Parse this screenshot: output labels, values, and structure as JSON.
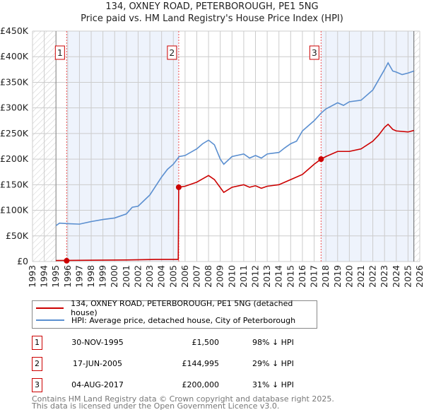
{
  "chart_data": {
    "type": "line",
    "title": "134, OXNEY ROAD, PETERBOROUGH, PE1 5NG",
    "subtitle": "Price paid vs. HM Land Registry's House Price Index (HPI)",
    "xlim": [
      1993,
      2026
    ],
    "ylim": [
      0,
      450000
    ],
    "x_ticks": [
      "1993",
      "1994",
      "1995",
      "1996",
      "1997",
      "1998",
      "1999",
      "2000",
      "2001",
      "2002",
      "2003",
      "2004",
      "2005",
      "2006",
      "2007",
      "2008",
      "2009",
      "2010",
      "2011",
      "2012",
      "2013",
      "2014",
      "2015",
      "2016",
      "2017",
      "2018",
      "2019",
      "2020",
      "2021",
      "2022",
      "2023",
      "2024",
      "2025",
      "2026"
    ],
    "y_ticks": [
      {
        "v": 0,
        "l": "£0"
      },
      {
        "v": 50000,
        "l": "£50K"
      },
      {
        "v": 100000,
        "l": "£100K"
      },
      {
        "v": 150000,
        "l": "£150K"
      },
      {
        "v": 200000,
        "l": "£200K"
      },
      {
        "v": 250000,
        "l": "£250K"
      },
      {
        "v": 300000,
        "l": "£300K"
      },
      {
        "v": 350000,
        "l": "£350K"
      },
      {
        "v": 400000,
        "l": "£400K"
      },
      {
        "v": 450000,
        "l": "£450K"
      }
    ],
    "grid": true,
    "series": [
      {
        "name": "134, OXNEY ROAD, PETERBOROUGH, PE1 5NG (detached house)",
        "color": "#cc0000",
        "points": [
          [
            1995,
            2000
          ],
          [
            2001,
            3000
          ],
          [
            2003.5,
            4000
          ],
          [
            2005.42,
            4000
          ],
          [
            2005.46,
            145000
          ],
          [
            2006,
            147000
          ],
          [
            2007,
            155000
          ],
          [
            2008,
            168000
          ],
          [
            2008.5,
            160000
          ],
          [
            2009.3,
            135000
          ],
          [
            2010,
            145000
          ],
          [
            2011,
            150000
          ],
          [
            2011.5,
            145000
          ],
          [
            2012,
            148000
          ],
          [
            2012.5,
            143000
          ],
          [
            2013,
            147000
          ],
          [
            2014,
            150000
          ],
          [
            2015,
            160000
          ],
          [
            2016,
            170000
          ],
          [
            2016.5,
            180000
          ],
          [
            2017,
            190000
          ],
          [
            2017.59,
            200000
          ],
          [
            2018,
            205000
          ],
          [
            2019,
            215000
          ],
          [
            2020,
            215000
          ],
          [
            2021,
            220000
          ],
          [
            2022,
            235000
          ],
          [
            2022.5,
            247000
          ],
          [
            2023,
            262000
          ],
          [
            2023.3,
            268000
          ],
          [
            2023.7,
            258000
          ],
          [
            2024,
            255000
          ],
          [
            2025,
            253000
          ],
          [
            2025.5,
            256000
          ]
        ]
      },
      {
        "name": "HPI: Average price, detached house, City of Peterborough",
        "color": "#5b8fd0",
        "points": [
          [
            1995,
            70000
          ],
          [
            1995.3,
            75000
          ],
          [
            1996,
            74000
          ],
          [
            1997,
            73000
          ],
          [
            1998,
            78000
          ],
          [
            1999,
            82000
          ],
          [
            2000,
            85000
          ],
          [
            2001,
            93000
          ],
          [
            2001.5,
            106000
          ],
          [
            2002,
            108000
          ],
          [
            2003,
            130000
          ],
          [
            2004,
            165000
          ],
          [
            2004.5,
            180000
          ],
          [
            2005,
            190000
          ],
          [
            2005.5,
            205000
          ],
          [
            2006,
            207000
          ],
          [
            2007,
            220000
          ],
          [
            2007.5,
            230000
          ],
          [
            2008,
            237000
          ],
          [
            2008.5,
            228000
          ],
          [
            2009,
            200000
          ],
          [
            2009.3,
            190000
          ],
          [
            2010,
            205000
          ],
          [
            2011,
            210000
          ],
          [
            2011.5,
            202000
          ],
          [
            2012,
            207000
          ],
          [
            2012.5,
            202000
          ],
          [
            2013,
            210000
          ],
          [
            2014,
            213000
          ],
          [
            2014.5,
            222000
          ],
          [
            2015,
            230000
          ],
          [
            2015.5,
            235000
          ],
          [
            2016,
            255000
          ],
          [
            2016.5,
            265000
          ],
          [
            2017,
            275000
          ],
          [
            2017.6,
            290000
          ],
          [
            2018,
            298000
          ],
          [
            2019,
            310000
          ],
          [
            2019.5,
            305000
          ],
          [
            2020,
            312000
          ],
          [
            2021,
            315000
          ],
          [
            2022,
            335000
          ],
          [
            2022.5,
            355000
          ],
          [
            2023,
            375000
          ],
          [
            2023.3,
            388000
          ],
          [
            2023.7,
            372000
          ],
          [
            2024,
            370000
          ],
          [
            2024.5,
            365000
          ],
          [
            2025,
            368000
          ],
          [
            2025.5,
            372000
          ]
        ]
      }
    ],
    "sales": [
      {
        "label": "1",
        "x": 1995.91,
        "y": 1500,
        "date": "30-NOV-1995",
        "price": "£1,500",
        "hpi": "98% ↓ HPI"
      },
      {
        "label": "2",
        "x": 2005.46,
        "y": 144995,
        "date": "17-JUN-2005",
        "price": "£144,995",
        "hpi": "29% ↓ HPI"
      },
      {
        "label": "3",
        "x": 2017.59,
        "y": 200000,
        "date": "04-AUG-2017",
        "price": "£200,000",
        "hpi": "31% ↓ HPI"
      }
    ],
    "legend_placement": "below"
  },
  "footer": [
    "Contains HM Land Registry data © Crown copyright and database right 2025.",
    "This data is licensed under the Open Government Licence v3.0."
  ]
}
